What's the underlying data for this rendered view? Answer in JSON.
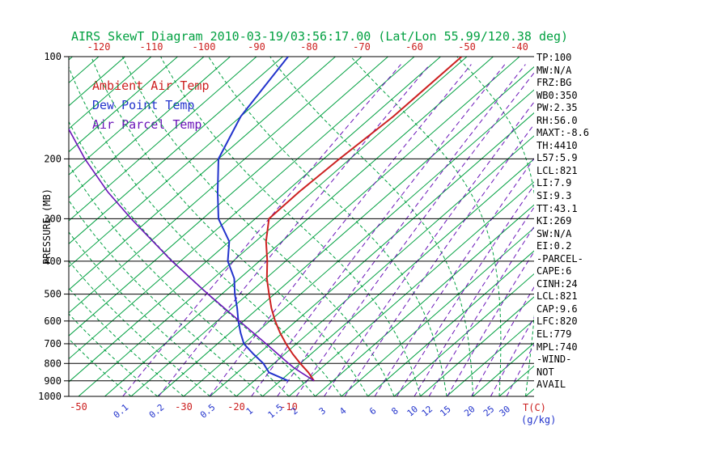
{
  "title": "AIRS SkewT Diagram 2010-03-19/03:56:17.00 (Lat/Lon 55.99/120.38 deg)",
  "colors": {
    "green": "#00a040",
    "red": "#cc2020",
    "blue": "#2233cc",
    "purple": "#6a14b8",
    "black": "#000000"
  },
  "legend": {
    "items": [
      {
        "label": "Ambient Air Temp",
        "color_key": "red"
      },
      {
        "label": "Dew Point Temp",
        "color_key": "blue"
      },
      {
        "label": "Air Parcel Temp",
        "color_key": "purple"
      }
    ]
  },
  "axes": {
    "pressure_label": "PRESSURE (MB)",
    "pressure_ticks": [
      100,
      200,
      300,
      400,
      500,
      600,
      700,
      800,
      900,
      1000
    ],
    "top_temp_ticks": [
      -120,
      -110,
      -100,
      -90,
      -80,
      -70,
      -60,
      -50,
      -40
    ],
    "bottom_temp_ticks": [
      -50,
      -30,
      -20,
      -10
    ],
    "temp_unit_label": "T(C)",
    "mixing_unit_label": "(g/kg)",
    "mixing_ratio_ticks": [
      0.1,
      0.2,
      0.5,
      1,
      1.5,
      2,
      3,
      4,
      6,
      8,
      10,
      12,
      15,
      20,
      25,
      30
    ]
  },
  "side_panel": {
    "lines": [
      "TP:100",
      "MW:N/A",
      "FRZ:BG",
      "WB0:350",
      "PW:2.35",
      "RH:56.0",
      "MAXT:-8.6",
      "TH:4410",
      "L57:5.9",
      "LCL:821",
      "LI:7.9",
      "SI:9.3",
      "TT:43.1",
      "KI:269",
      "SW:N/A",
      "EI:0.2",
      "-PARCEL-",
      "CAPE:6",
      "CINH:24",
      "LCL:821",
      "CAP:9.6",
      "LFC:820",
      "EL:779",
      "MPL:740",
      "-WIND-",
      "NOT",
      "AVAIL"
    ]
  },
  "chart_data": {
    "type": "line",
    "title": "AIRS SkewT Diagram 2010-03-19/03:56:17.00 (Lat/Lon 55.99/120.38 deg)",
    "xlabel": "T(C)",
    "ylabel": "PRESSURE (MB)",
    "y_scale": "log-pressure",
    "pressure_range_mb": [
      100,
      1000
    ],
    "top_axis_temp_range_c": [
      -120,
      -40
    ],
    "grid": {
      "isotherm_step_c": 5,
      "moist_adiabats_c_at_1000mb": [
        -40,
        -35,
        -30,
        -25,
        -20,
        -15,
        -10,
        -5,
        0,
        5,
        10,
        15,
        20,
        25,
        30,
        35
      ],
      "mixing_ratio_lines_gkg": [
        0.1,
        0.2,
        0.5,
        1,
        1.5,
        2,
        3,
        4,
        6,
        8,
        10,
        12,
        15,
        20,
        25,
        30
      ]
    },
    "series": [
      {
        "name": "Ambient Air Temp",
        "color_key": "red",
        "points_mb_c": [
          [
            900,
            -8.6
          ],
          [
            850,
            -11.5
          ],
          [
            800,
            -15.0
          ],
          [
            750,
            -18.5
          ],
          [
            700,
            -22.0
          ],
          [
            650,
            -25.5
          ],
          [
            600,
            -29.0
          ],
          [
            550,
            -32.5
          ],
          [
            500,
            -36.0
          ],
          [
            450,
            -39.8
          ],
          [
            400,
            -43.5
          ],
          [
            350,
            -48.0
          ],
          [
            300,
            -52.4
          ],
          [
            250,
            -52.5
          ],
          [
            200,
            -52.0
          ],
          [
            150,
            -51.0
          ],
          [
            100,
            -51.0
          ]
        ]
      },
      {
        "name": "Dew Point Temp",
        "color_key": "blue",
        "points_mb_c": [
          [
            900,
            -13.5
          ],
          [
            850,
            -19.0
          ],
          [
            800,
            -22.0
          ],
          [
            750,
            -26.0
          ],
          [
            700,
            -30.0
          ],
          [
            650,
            -33.0
          ],
          [
            600,
            -36.0
          ],
          [
            550,
            -39.0
          ],
          [
            500,
            -42.5
          ],
          [
            450,
            -46.0
          ],
          [
            400,
            -51.0
          ],
          [
            350,
            -55.0
          ],
          [
            300,
            -62.0
          ],
          [
            250,
            -68.0
          ],
          [
            200,
            -75.0
          ],
          [
            150,
            -80.0
          ],
          [
            100,
            -84.0
          ]
        ]
      },
      {
        "name": "Air Parcel Temp",
        "color_key": "purple",
        "points_mb_c": [
          [
            900,
            -8.6
          ],
          [
            850,
            -12.9
          ],
          [
            821,
            -15.5
          ],
          [
            800,
            -17.2
          ],
          [
            700,
            -25.8
          ],
          [
            600,
            -35.8
          ],
          [
            500,
            -47.6
          ],
          [
            400,
            -61.6
          ],
          [
            300,
            -78.6
          ],
          [
            250,
            -88.9
          ],
          [
            200,
            -100.4
          ],
          [
            150,
            -114.0
          ]
        ]
      }
    ]
  }
}
